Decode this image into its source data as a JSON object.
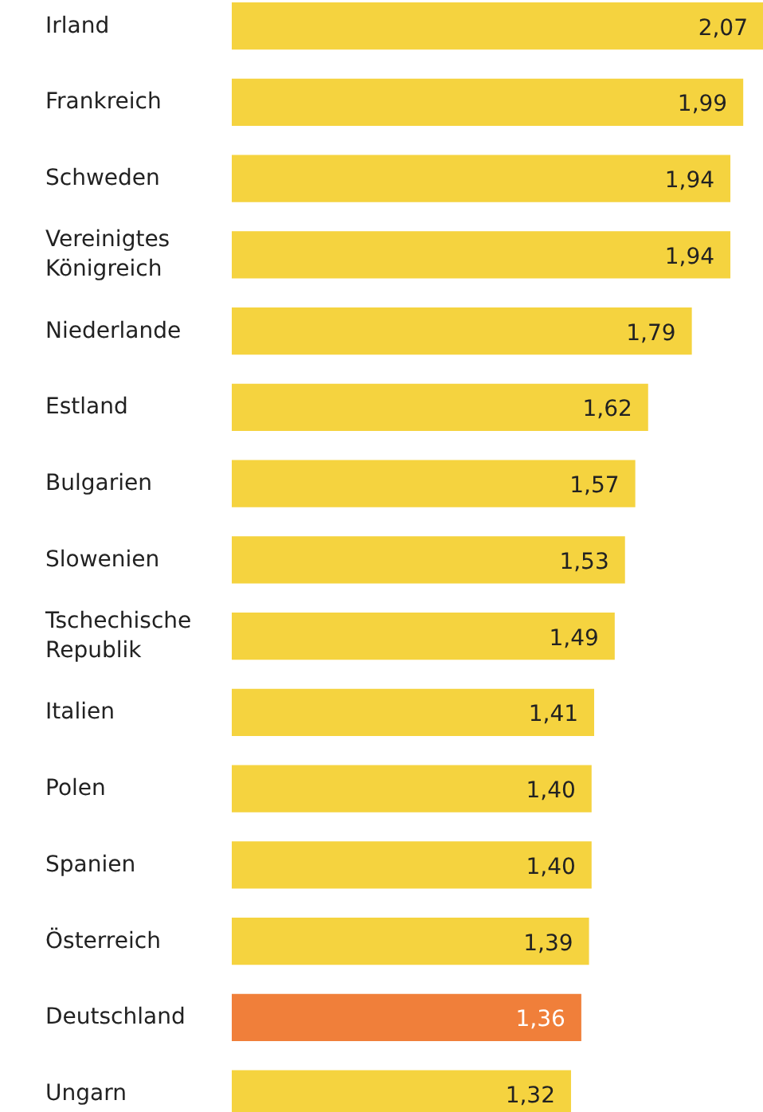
{
  "chart_data": {
    "type": "bar",
    "orientation": "horizontal",
    "categories": [
      "Irland",
      "Frankreich",
      "Schweden",
      "Vereinigtes\nKönigreich",
      "Niederlande",
      "Estland",
      "Bulgarien",
      "Slowenien",
      "Tschechische\nRepublik",
      "Italien",
      "Polen",
      "Spanien",
      "Österreich",
      "Deutschland",
      "Ungarn"
    ],
    "values": [
      2.07,
      1.99,
      1.94,
      1.94,
      1.79,
      1.62,
      1.57,
      1.53,
      1.49,
      1.41,
      1.4,
      1.4,
      1.39,
      1.36,
      1.32
    ],
    "value_labels": [
      "2,07",
      "1,99",
      "1,94",
      "1,94",
      "1,79",
      "1,62",
      "1,57",
      "1,53",
      "1,49",
      "1,41",
      "1,40",
      "1,40",
      "1,39",
      "1,36",
      "1,32"
    ],
    "colors": [
      "#f5d33f",
      "#f5d33f",
      "#f5d33f",
      "#f5d33f",
      "#f5d33f",
      "#f5d33f",
      "#f5d33f",
      "#f5d33f",
      "#f5d33f",
      "#f5d33f",
      "#f5d33f",
      "#f5d33f",
      "#f5d33f",
      "#f07f3a",
      "#f5d33f"
    ],
    "grid": false
  }
}
